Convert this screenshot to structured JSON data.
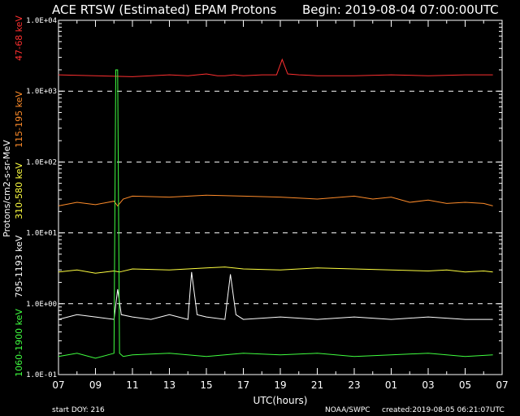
{
  "header": {
    "title": "ACE RTSW (Estimated) EPAM Protons",
    "begin": "Begin: 2019-08-04 07:00:00UTC"
  },
  "footer": {
    "start_doy": "start DOY:  216",
    "source": "NOAA/SWPC",
    "created": "created:2019-08-05 06:21:07UTC"
  },
  "chart_data": {
    "type": "line",
    "ylabel": "Protons/cm2-s-sr-MeV",
    "xlabel": "UTC(hours)",
    "y_scale": "log",
    "ylim": [
      0.1,
      10000
    ],
    "y_ticks": [
      {
        "value": 10000,
        "label": "1.0E+04"
      },
      {
        "value": 1000,
        "label": "1.0E+03"
      },
      {
        "value": 100,
        "label": "1.0E+02"
      },
      {
        "value": 10,
        "label": "1.0E+01"
      },
      {
        "value": 1,
        "label": "1.0E+00"
      },
      {
        "value": 0.1,
        "label": "1.0E-01"
      }
    ],
    "x_ticks": [
      "07",
      "09",
      "11",
      "13",
      "15",
      "17",
      "19",
      "21",
      "23",
      "01",
      "03",
      "05",
      "07"
    ],
    "x_range_hours": [
      0,
      24
    ],
    "dashed_gridlines_at": [
      1000,
      100,
      10,
      1
    ],
    "series": [
      {
        "name": "47-68 keV",
        "color": "#ff3030",
        "x": [
          0,
          2,
          4,
          5,
          6,
          7,
          7.5,
          8,
          8.3,
          8.6,
          9,
          9.5,
          10,
          11,
          11.8,
          12.1,
          12.4,
          13,
          14,
          16,
          18,
          20,
          22,
          23.5
        ],
        "y": [
          1700,
          1650,
          1600,
          1650,
          1700,
          1650,
          1700,
          1750,
          1700,
          1650,
          1650,
          1700,
          1650,
          1700,
          1700,
          2800,
          1750,
          1700,
          1650,
          1650,
          1700,
          1650,
          1700,
          1700
        ]
      },
      {
        "name": "115-195 keV",
        "color": "#ff8c2a",
        "x": [
          0,
          1,
          2,
          3,
          3.2,
          3.5,
          4,
          6,
          8,
          10,
          12,
          14,
          16,
          17,
          18,
          19,
          20,
          21,
          22,
          23,
          23.5
        ],
        "y": [
          24,
          27,
          25,
          28,
          24,
          30,
          33,
          32,
          34,
          33,
          32,
          30,
          33,
          30,
          32,
          27,
          29,
          26,
          27,
          26,
          24
        ]
      },
      {
        "name": "310-580 keV",
        "color": "#ffff40",
        "x": [
          0,
          1,
          2,
          3,
          3.3,
          4,
          6,
          8,
          9,
          10,
          12,
          14,
          16,
          18,
          20,
          21,
          22,
          23,
          23.5
        ],
        "y": [
          2.8,
          3.0,
          2.7,
          2.9,
          2.8,
          3.1,
          3.0,
          3.2,
          3.3,
          3.1,
          3.0,
          3.2,
          3.1,
          3.0,
          2.9,
          3.0,
          2.8,
          2.9,
          2.8
        ]
      },
      {
        "name": "795-1193 keV",
        "color": "#ffffff",
        "x": [
          0,
          1,
          2,
          3,
          3.2,
          3.4,
          4,
          5,
          6,
          7,
          7.2,
          7.5,
          8,
          9,
          9.3,
          9.6,
          10,
          12,
          14,
          16,
          18,
          20,
          22,
          23.5
        ],
        "y": [
          0.6,
          0.7,
          0.65,
          0.6,
          1.6,
          0.7,
          0.65,
          0.6,
          0.7,
          0.6,
          2.8,
          0.7,
          0.65,
          0.6,
          2.6,
          0.7,
          0.6,
          0.65,
          0.6,
          0.65,
          0.6,
          0.65,
          0.6,
          0.6
        ]
      },
      {
        "name": "1060-1900 keV",
        "color": "#40ff40",
        "x": [
          0,
          1,
          2,
          3,
          3.1,
          3.2,
          3.3,
          3.5,
          4,
          6,
          8,
          10,
          12,
          14,
          16,
          18,
          20,
          22,
          23.5
        ],
        "y": [
          0.18,
          0.2,
          0.17,
          0.2,
          2000,
          2000,
          0.2,
          0.18,
          0.19,
          0.2,
          0.18,
          0.2,
          0.19,
          0.2,
          0.18,
          0.19,
          0.2,
          0.18,
          0.19
        ]
      }
    ]
  }
}
